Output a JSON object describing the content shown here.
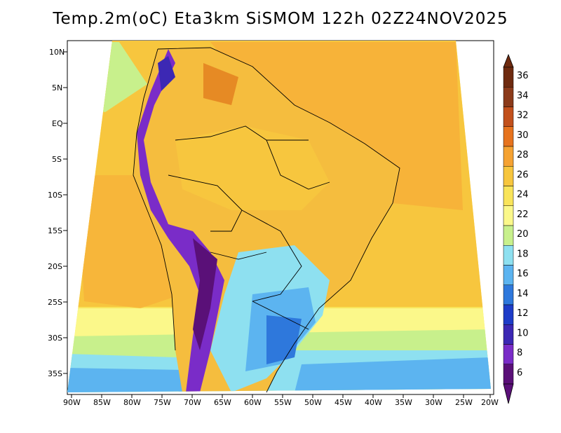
{
  "title": "Temp.2m(oC) Eta3km SiSMOM 122h 02Z24NOV2025",
  "axes": {
    "lat_labels": [
      "10N",
      "5N",
      "EQ",
      "5S",
      "10S",
      "15S",
      "20S",
      "25S",
      "30S",
      "35S"
    ],
    "lon_labels": [
      "90W",
      "85W",
      "80W",
      "75W",
      "70W",
      "65W",
      "60W",
      "55W",
      "50W",
      "45W",
      "40W",
      "35W",
      "30W",
      "25W",
      "20W"
    ]
  },
  "colorbar": {
    "labels": [
      "36",
      "34",
      "32",
      "30",
      "28",
      "26",
      "24",
      "22",
      "20",
      "18",
      "16",
      "14",
      "12",
      "10",
      "8",
      "6"
    ],
    "colors": [
      "#6e2a0f",
      "#8b3a1a",
      "#c2501c",
      "#e6731e",
      "#f5a232",
      "#f7c63e",
      "#f9e45a",
      "#fbf88a",
      "#c8f08c",
      "#8ee0f0",
      "#5cb4f0",
      "#2e78dc",
      "#1e3cc8",
      "#3c28b4",
      "#7a2cc8",
      "#5a1078"
    ]
  },
  "legend_colors": {
    "ocean_warm": "#f7b339",
    "ocean_mid": "#f9d64a",
    "land_warm": "#f5bd3e",
    "andes": "#6a1e8c",
    "south_cool": "#5ab2ec"
  }
}
